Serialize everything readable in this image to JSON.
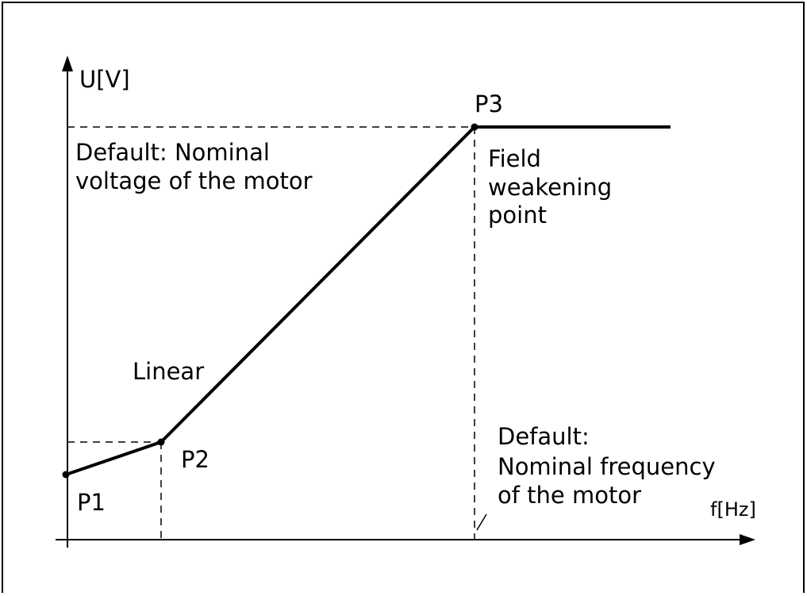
{
  "axes": {
    "y_label": "U[V]",
    "x_label": "f[Hz]"
  },
  "points": [
    {
      "label": "P1"
    },
    {
      "label": "P2"
    },
    {
      "label": "P3"
    }
  ],
  "annotations": {
    "nominal_voltage": [
      "Default: Nominal",
      "voltage of the motor"
    ],
    "field_weakening": [
      "Field",
      "weakening",
      "point"
    ],
    "linear": "Linear",
    "nominal_frequency": [
      "Default:",
      "Nominal frequency",
      "of the motor"
    ]
  }
}
